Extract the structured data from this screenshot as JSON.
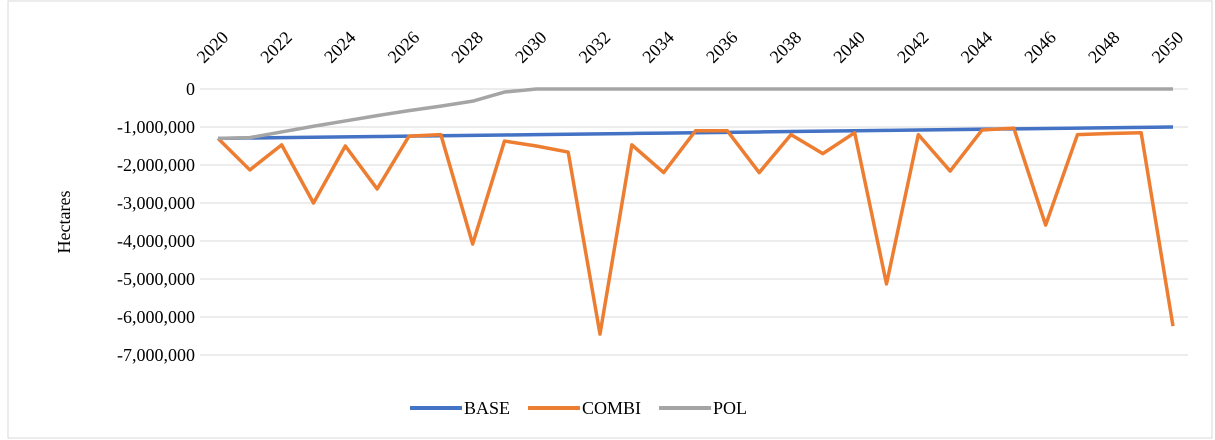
{
  "chart_data": {
    "type": "line",
    "y_label": "Hectares",
    "x": [
      2020,
      2021,
      2022,
      2023,
      2024,
      2025,
      2026,
      2027,
      2028,
      2029,
      2030,
      2031,
      2032,
      2033,
      2034,
      2035,
      2036,
      2037,
      2038,
      2039,
      2040,
      2041,
      2042,
      2043,
      2044,
      2045,
      2046,
      2047,
      2048,
      2049,
      2050
    ],
    "xlim": [
      2020,
      2050
    ],
    "xticks": [
      2020,
      2022,
      2024,
      2026,
      2028,
      2030,
      2032,
      2034,
      2036,
      2038,
      2040,
      2042,
      2044,
      2046,
      2048,
      2050
    ],
    "ylim": [
      -7000000,
      0
    ],
    "yticks": [
      0,
      {
        "value": -1000000,
        "label": "-1,000,000"
      },
      {
        "value": -2000000,
        "label": "-2,000,000"
      },
      {
        "value": -3000000,
        "label": "-3,000,000"
      },
      {
        "value": -4000000,
        "label": "-4,000,000"
      },
      {
        "value": -5000000,
        "label": "-5,000,000"
      },
      {
        "value": -6000000,
        "label": "-6,000,000"
      },
      {
        "value": -7000000,
        "label": "-7,000,000"
      }
    ],
    "grid": true,
    "legend": "bottom",
    "series": [
      {
        "name": "BASE",
        "color": "#4472c4",
        "values": [
          -1300000,
          -1290000,
          -1280000,
          -1270000,
          -1260000,
          -1250000,
          -1240000,
          -1230000,
          -1220000,
          -1210000,
          -1200000,
          -1190000,
          -1180000,
          -1170000,
          -1160000,
          -1150000,
          -1140000,
          -1130000,
          -1120000,
          -1110000,
          -1100000,
          -1090000,
          -1080000,
          -1070000,
          -1060000,
          -1050000,
          -1040000,
          -1030000,
          -1020000,
          -1010000,
          -1000000
        ]
      },
      {
        "name": "COMBI",
        "color": "#ed7d31",
        "values": [
          -1300000,
          -2130000,
          -1470000,
          -3000000,
          -1500000,
          -2630000,
          -1240000,
          -1200000,
          -4080000,
          -1370000,
          -1500000,
          -1660000,
          -6450000,
          -1470000,
          -2200000,
          -1100000,
          -1100000,
          -2200000,
          -1200000,
          -1700000,
          -1150000,
          -5130000,
          -1200000,
          -2160000,
          -1080000,
          -1030000,
          -3580000,
          -1200000,
          -1170000,
          -1150000,
          -6240000
        ]
      },
      {
        "name": "POL",
        "color": "#a5a5a5",
        "values": [
          -1300000,
          -1280000,
          -1130000,
          -980000,
          -840000,
          -700000,
          -570000,
          -450000,
          -320000,
          -80000,
          0,
          0,
          0,
          0,
          0,
          0,
          0,
          0,
          0,
          0,
          0,
          0,
          0,
          0,
          0,
          0,
          0,
          0,
          0,
          0,
          0
        ]
      }
    ]
  }
}
